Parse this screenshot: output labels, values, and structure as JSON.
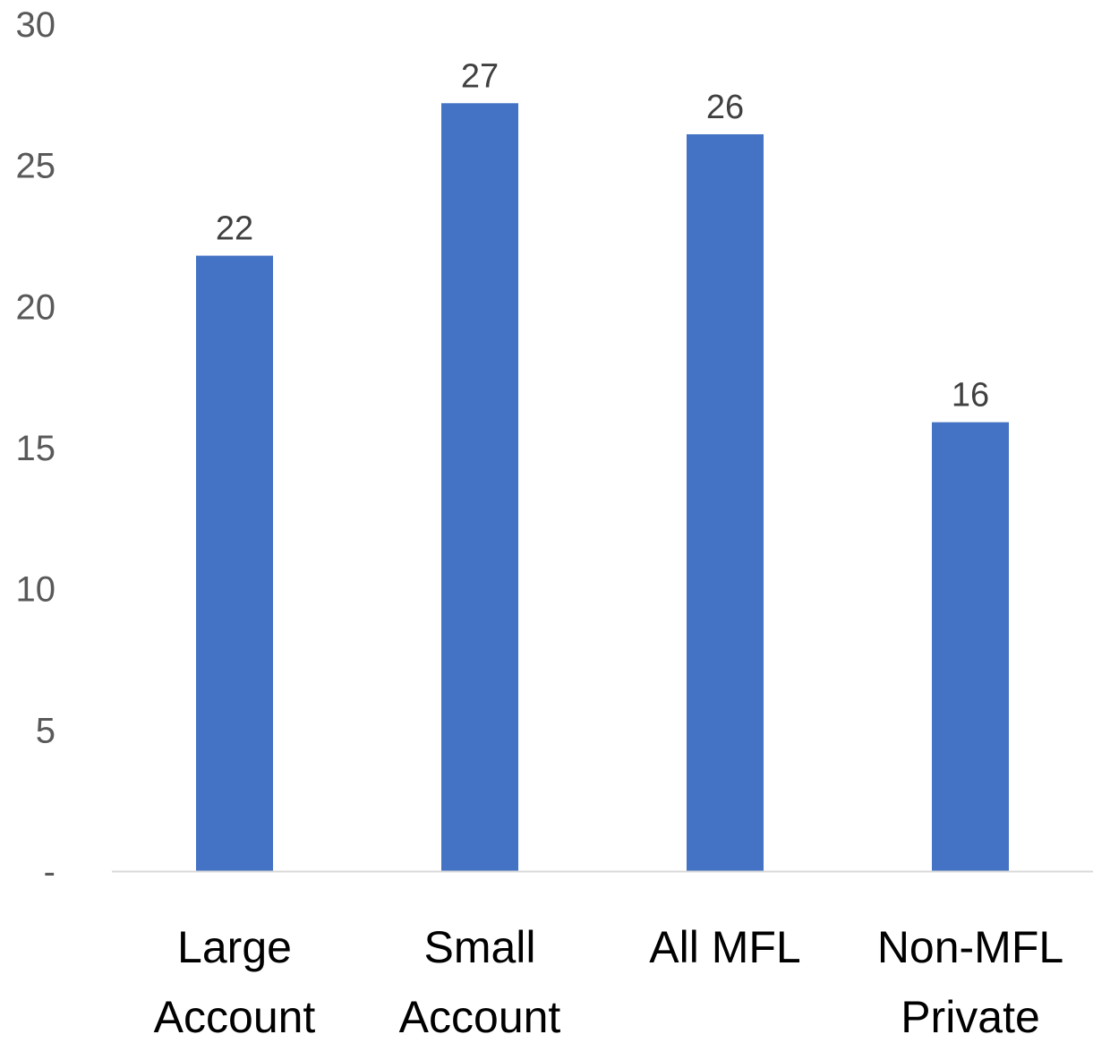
{
  "chart_data": {
    "type": "bar",
    "categories": [
      [
        "Large",
        "Account"
      ],
      [
        "Small",
        "Account"
      ],
      [
        "All MFL"
      ],
      [
        "Non-MFL",
        "Private"
      ]
    ],
    "values": [
      21.8,
      27.2,
      26.1,
      15.9
    ],
    "data_labels": [
      "22",
      "27",
      "26",
      "16"
    ],
    "ylim": [
      0,
      30
    ],
    "yticks": [
      0,
      5,
      10,
      15,
      20,
      25,
      30
    ],
    "ytick_labels": [
      "-",
      "5",
      "10",
      "15",
      "20",
      "25",
      "30"
    ],
    "grid": false,
    "legend": "none",
    "bar_color": "#4472C4",
    "axis_color": "#D9D9D9"
  }
}
